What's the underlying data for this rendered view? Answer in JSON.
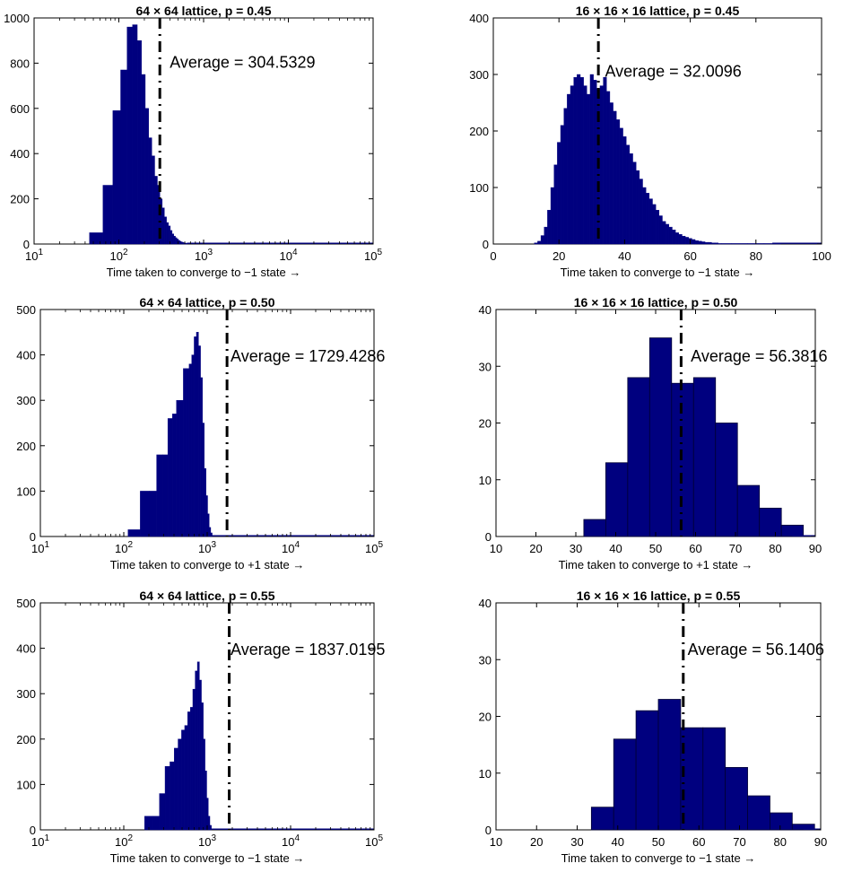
{
  "chart_data": [
    {
      "type": "bar",
      "title": "64 × 64 lattice, p = 0.45",
      "xlabel": "Time taken to converge to −1 state →",
      "ylabel": "",
      "xscale": "log",
      "xlim": [
        10,
        100000
      ],
      "ylim": [
        0,
        1000
      ],
      "xticks": [
        "10^1",
        "10^2",
        "10^3",
        "10^4",
        "10^5"
      ],
      "yticks": [
        0,
        200,
        400,
        600,
        800,
        1000
      ],
      "color": "#00007f",
      "bins": {
        "x": [
          55,
          75,
          95,
          115,
          135,
          155,
          175,
          195,
          215,
          235,
          255,
          275,
          295,
          315,
          335,
          355,
          375,
          395,
          415,
          435,
          455,
          475,
          495,
          515,
          535,
          555,
          575,
          595,
          615,
          635
        ],
        "values": [
          50,
          260,
          590,
          770,
          960,
          970,
          900,
          750,
          600,
          470,
          390,
          300,
          260,
          200,
          160,
          120,
          95,
          80,
          60,
          45,
          35,
          28,
          22,
          16,
          12,
          9,
          7,
          5,
          4,
          3
        ]
      },
      "average": 304.5329,
      "average_label": "Average = 304.5329"
    },
    {
      "type": "bar",
      "title": "16 × 16 × 16 lattice, p = 0.45",
      "xlabel": "Time taken to converge to −1 state →",
      "ylabel": "",
      "xscale": "linear",
      "xlim": [
        0,
        100
      ],
      "ylim": [
        0,
        400
      ],
      "xticks": [
        0,
        20,
        40,
        60,
        80,
        100
      ],
      "yticks": [
        0,
        100,
        200,
        300,
        400
      ],
      "color": "#00007f",
      "bins": {
        "x": [
          13,
          14,
          15,
          16,
          17,
          18,
          19,
          20,
          21,
          22,
          23,
          24,
          25,
          26,
          27,
          28,
          29,
          30,
          31,
          32,
          33,
          34,
          35,
          36,
          37,
          38,
          39,
          40,
          41,
          42,
          43,
          44,
          45,
          46,
          47,
          48,
          49,
          50,
          51,
          52,
          53,
          54,
          55,
          56,
          57,
          58,
          59,
          60,
          61,
          62,
          63,
          64,
          65,
          66,
          67,
          68,
          69,
          70,
          75,
          80,
          85
        ],
        "values": [
          2,
          5,
          15,
          30,
          60,
          100,
          140,
          180,
          210,
          240,
          265,
          280,
          295,
          300,
          295,
          280,
          265,
          300,
          290,
          275,
          280,
          295,
          270,
          250,
          235,
          220,
          205,
          190,
          175,
          160,
          145,
          130,
          115,
          100,
          90,
          80,
          70,
          60,
          50,
          40,
          35,
          30,
          25,
          20,
          17,
          14,
          12,
          10,
          8,
          6,
          5,
          4,
          3,
          3,
          2,
          2,
          1,
          1,
          1,
          1,
          1
        ]
      },
      "average": 32.0096,
      "average_label": "Average = 32.0096"
    },
    {
      "type": "bar",
      "title": "64 × 64 lattice, p = 0.50",
      "xlabel": "Time taken to converge to +1 state →",
      "ylabel": "",
      "xscale": "log",
      "xlim": [
        10,
        100000
      ],
      "ylim": [
        0,
        500
      ],
      "xticks": [
        "10^1",
        "10^2",
        "10^3",
        "10^4",
        "10^5"
      ],
      "yticks": [
        0,
        100,
        200,
        300,
        400,
        500
      ],
      "color": "#00007f",
      "bins": {
        "x": [
          135,
          180,
          225,
          270,
          315,
          360,
          405,
          450,
          495,
          540,
          585,
          630,
          675,
          720,
          765,
          810,
          855,
          900,
          945,
          990,
          1035,
          1080,
          1125
        ],
        "values": [
          15,
          100,
          100,
          180,
          180,
          260,
          270,
          300,
          300,
          370,
          370,
          380,
          400,
          440,
          450,
          420,
          350,
          250,
          150,
          90,
          50,
          20,
          8
        ]
      },
      "average": 1729.4286,
      "average_label": "Average = 1729.4286"
    },
    {
      "type": "bar",
      "title": "16 × 16 × 16 lattice, p = 0.50",
      "xlabel": "Time taken to converge to +1 state →",
      "ylabel": "",
      "xscale": "linear",
      "xlim": [
        10,
        90
      ],
      "ylim": [
        0,
        40
      ],
      "xticks": [
        10,
        20,
        30,
        40,
        50,
        60,
        70,
        80,
        90
      ],
      "yticks": [
        0,
        10,
        20,
        30,
        40
      ],
      "color": "#00007f",
      "bins": {
        "x": [
          34.75,
          40.25,
          45.75,
          51.25,
          56.75,
          62.25,
          67.75,
          73.25,
          78.75,
          84.25
        ],
        "values": [
          3,
          13,
          28,
          35,
          27,
          28,
          20,
          9,
          5,
          2
        ],
        "width": 5.5
      },
      "average": 56.3816,
      "average_label": "Average = 56.3816"
    },
    {
      "type": "bar",
      "title": "64 × 64 lattice, p = 0.55",
      "xlabel": "Time taken to converge to −1 state →",
      "ylabel": "",
      "xscale": "log",
      "xlim": [
        10,
        100000
      ],
      "ylim": [
        0,
        500
      ],
      "xticks": [
        "10^1",
        "10^2",
        "10^3",
        "10^4",
        "10^5"
      ],
      "yticks": [
        0,
        100,
        200,
        300,
        400,
        500
      ],
      "color": "#00007f",
      "bins": {
        "x": [
          200,
          245,
          290,
          335,
          380,
          425,
          470,
          515,
          560,
          605,
          650,
          695,
          740,
          785,
          830,
          875,
          920,
          965,
          1010,
          1055,
          1100
        ],
        "values": [
          30,
          30,
          80,
          140,
          150,
          180,
          200,
          220,
          230,
          260,
          270,
          310,
          350,
          370,
          330,
          280,
          200,
          130,
          70,
          30,
          10
        ]
      },
      "average": 1837.0195,
      "average_label": "Average = 1837.0195"
    },
    {
      "type": "bar",
      "title": "16 × 16 × 16 lattice, p = 0.55",
      "xlabel": "Time taken to converge to −1 state →",
      "ylabel": "",
      "xscale": "linear",
      "xlim": [
        10,
        90
      ],
      "ylim": [
        0,
        40
      ],
      "xticks": [
        10,
        20,
        30,
        40,
        50,
        60,
        70,
        80,
        90
      ],
      "yticks": [
        0,
        10,
        20,
        30,
        40
      ],
      "color": "#00007f",
      "bins": {
        "x": [
          36.25,
          41.75,
          47.25,
          52.75,
          58.25,
          63.75,
          69.25,
          74.75,
          80.25,
          85.75
        ],
        "values": [
          4,
          16,
          21,
          23,
          18,
          18,
          11,
          6,
          3,
          1
        ],
        "width": 5.5
      },
      "average": 56.1406,
      "average_label": "Average = 56.1406"
    }
  ]
}
